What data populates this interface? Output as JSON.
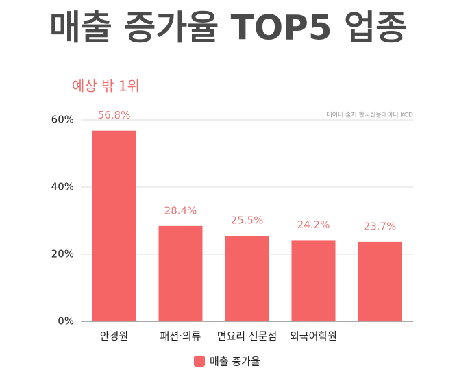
{
  "chart_data": {
    "type": "bar",
    "title": "매출 증가율 TOP5 업종",
    "subtitle": "예상 밖 1위",
    "source": "데이터 출처 한국신용데이터 KCD",
    "categories": [
      "안경원",
      "패션·의류",
      "면요리 전문점",
      "외국어학원",
      null
    ],
    "series": [
      {
        "name": "매출 증가율",
        "color": "#f56565",
        "values": [
          56.8,
          28.4,
          25.5,
          24.2,
          23.7
        ],
        "value_labels": [
          "56.8%",
          "28.4%",
          "25.5%",
          "24.2%",
          "23.7%"
        ]
      }
    ],
    "ylim": [
      0,
      60
    ],
    "yticks": [
      {
        "value": 0,
        "label": "0%"
      },
      {
        "value": 20,
        "label": "20%"
      },
      {
        "value": 40,
        "label": "40%"
      },
      {
        "value": 60,
        "label": "60%"
      }
    ],
    "grid": true,
    "legend": "bottom"
  }
}
